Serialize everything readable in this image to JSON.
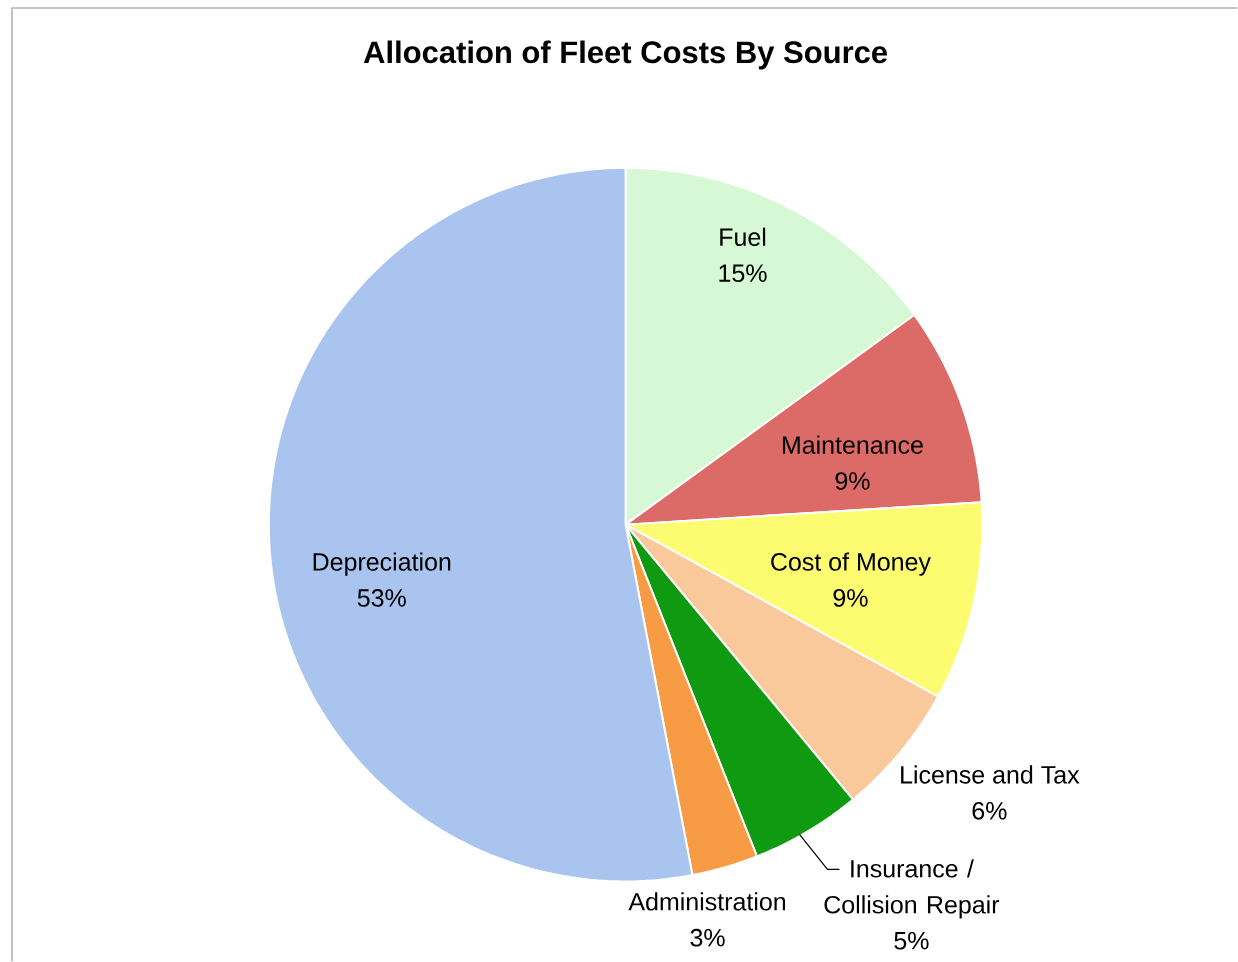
{
  "chart_data": {
    "type": "pie",
    "title": "Allocation of Fleet Costs By Source",
    "categories": [
      "Fuel",
      "Maintenance",
      "Cost of Money",
      "License and Tax",
      "Insurance / Collision Repair",
      "Administration",
      "Depreciation"
    ],
    "values": [
      15,
      9,
      9,
      6,
      5,
      3,
      53
    ],
    "colors": [
      "#d6f8d4",
      "#dc6a66",
      "#fdfb70",
      "#f9c99c",
      "#0f9a12",
      "#f79c45",
      "#a9c5ef"
    ],
    "value_labels": [
      "15%",
      "9%",
      "9%",
      "6%",
      "5%",
      "3%",
      "53%"
    ]
  }
}
